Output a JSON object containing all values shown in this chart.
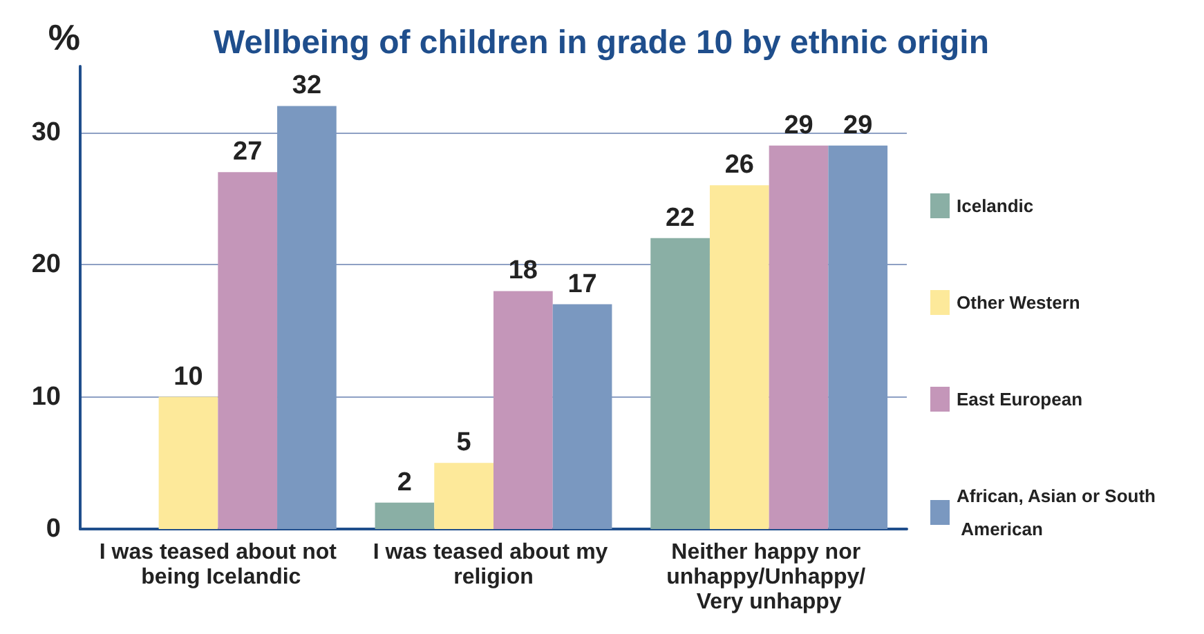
{
  "chart_data": {
    "type": "bar",
    "title": "Wellbeing of children in grade 10 by ethnic origin",
    "ylabel": "%",
    "categories": [
      "I was teased about not being Icelandic",
      "I was teased about my religion",
      "Neither happy nor unhappy/Unhappy/ Very unhappy"
    ],
    "series": [
      {
        "name": "Icelandic",
        "color": "#8aafa5",
        "values": [
          null,
          2,
          22
        ]
      },
      {
        "name": "Other Western",
        "color": "#fde99a",
        "values": [
          10,
          5,
          26
        ]
      },
      {
        "name": "East European",
        "color": "#c496b9",
        "values": [
          27,
          18,
          29
        ]
      },
      {
        "name": "African, Asian or South American",
        "color": "#7a98c0",
        "values": [
          32,
          17,
          29
        ]
      }
    ],
    "ylim": [
      0,
      35
    ],
    "yticks": [
      0,
      10,
      20,
      30
    ],
    "grid": "y",
    "legend": "right",
    "data_labels": true
  }
}
